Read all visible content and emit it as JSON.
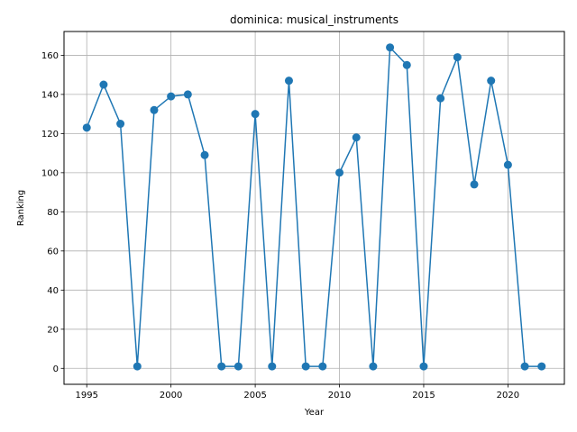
{
  "chart_data": {
    "type": "line",
    "title": "dominica: musical_instruments",
    "xlabel": "Year",
    "ylabel": "Ranking",
    "xlim": [
      1993.65,
      2023.35
    ],
    "ylim": [
      -8.15,
      172.15
    ],
    "x_ticks": [
      1995,
      2000,
      2005,
      2010,
      2015,
      2020
    ],
    "y_ticks": [
      0,
      20,
      40,
      60,
      80,
      100,
      120,
      140,
      160
    ],
    "grid": true,
    "series": [
      {
        "color": "#1f77b4",
        "marker": "circle",
        "x": [
          1995,
          1996,
          1997,
          1998,
          1999,
          2000,
          2001,
          2002,
          2003,
          2004,
          2005,
          2006,
          2007,
          2008,
          2009,
          2010,
          2011,
          2012,
          2013,
          2014,
          2015,
          2016,
          2017,
          2018,
          2019,
          2020,
          2021,
          2022
        ],
        "y": [
          123,
          145,
          125,
          1,
          132,
          139,
          140,
          109,
          1,
          1,
          130,
          1,
          147,
          1,
          1,
          100,
          118,
          1,
          164,
          155,
          1,
          138,
          159,
          94,
          147,
          104,
          1,
          1
        ]
      }
    ]
  }
}
